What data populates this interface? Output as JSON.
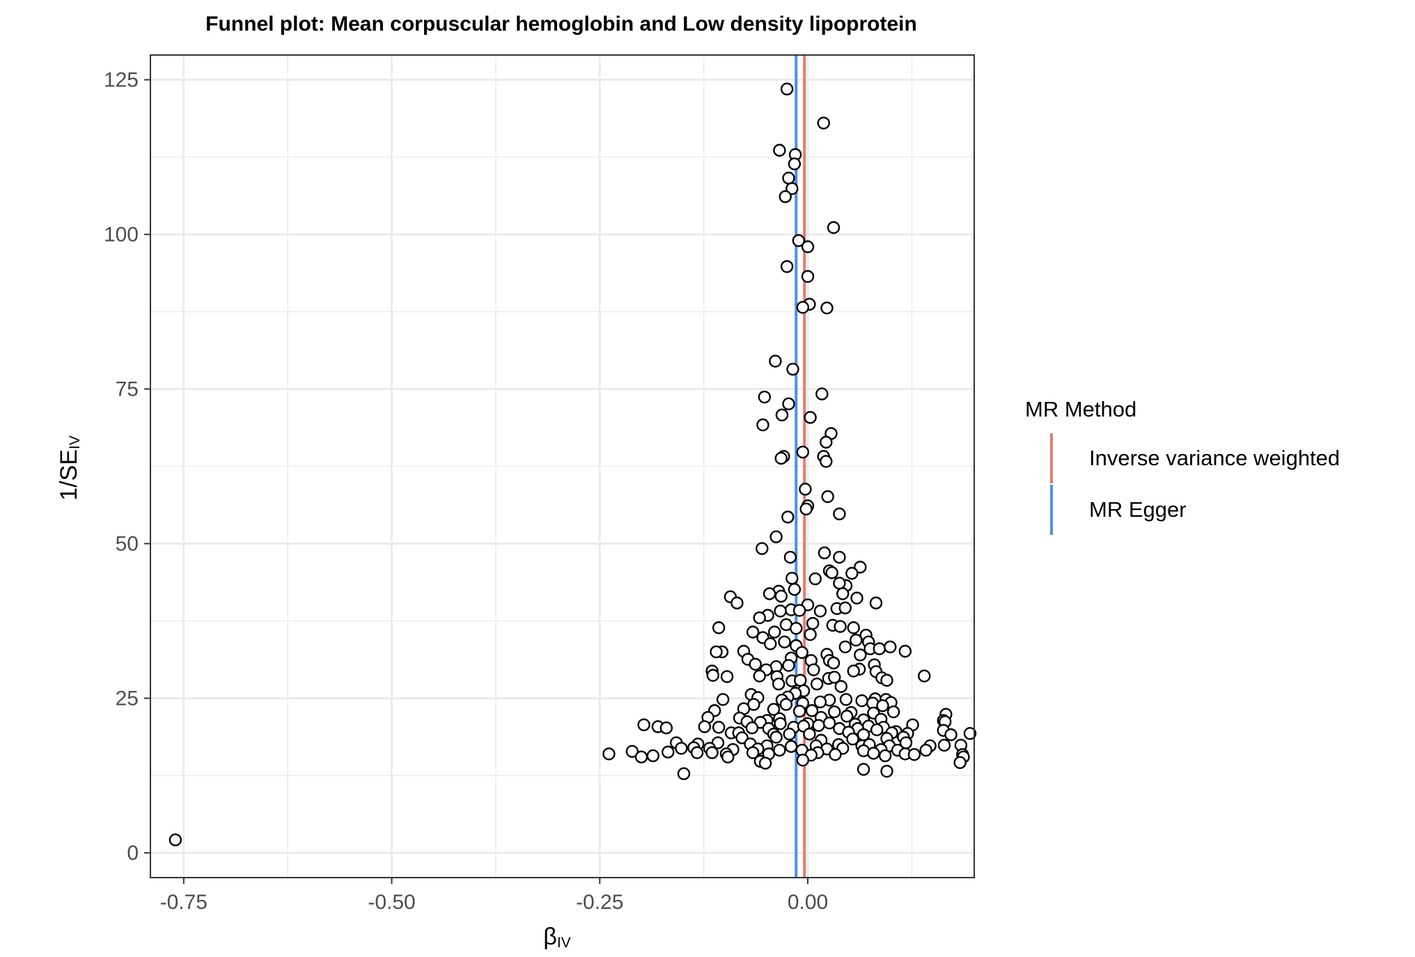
{
  "chart_data": {
    "type": "scatter",
    "title": "Funnel plot: Mean corpuscular hemoglobin and Low density lipoprotein",
    "xlabel": {
      "main": "β",
      "sub": "IV"
    },
    "ylabel": {
      "prefix": "1/SE",
      "sub": "IV"
    },
    "xlim": [
      -0.79,
      0.2
    ],
    "ylim": [
      -4,
      129
    ],
    "x_ticks": [
      -0.75,
      -0.5,
      -0.25,
      0.0
    ],
    "x_tick_labels": [
      "-0.75",
      "-0.50",
      "-0.25",
      "0.00"
    ],
    "y_ticks": [
      0,
      25,
      50,
      75,
      100,
      125
    ],
    "y_tick_labels": [
      "0",
      "25",
      "50",
      "75",
      "100",
      "125"
    ],
    "grid": true,
    "legend": {
      "title": "MR Method",
      "position": "right",
      "entries": [
        {
          "label": "Inverse variance weighted",
          "color": "#E8796E"
        },
        {
          "label": "MR Egger",
          "color": "#4A90E8"
        }
      ]
    },
    "vlines": [
      {
        "method": "Inverse variance weighted",
        "x": -0.004,
        "color": "#E8796E"
      },
      {
        "method": "MR Egger",
        "x": -0.014,
        "color": "#4A90E8"
      }
    ],
    "points": [
      [
        -0.025,
        123.5
      ],
      [
        0.019,
        118
      ],
      [
        -0.034,
        113.6
      ],
      [
        -0.015,
        112.9
      ],
      [
        -0.016,
        111.4
      ],
      [
        -0.023,
        109.1
      ],
      [
        -0.019,
        107.4
      ],
      [
        -0.027,
        106.1
      ],
      [
        0.031,
        101.1
      ],
      [
        -0.011,
        99
      ],
      [
        0.0,
        98
      ],
      [
        -0.025,
        94.8
      ],
      [
        0.0,
        93.2
      ],
      [
        0.002,
        88.7
      ],
      [
        -0.006,
        88.2
      ],
      [
        0.023,
        88.1
      ],
      [
        -0.039,
        79.5
      ],
      [
        -0.018,
        78.2
      ],
      [
        -0.052,
        73.7
      ],
      [
        0.017,
        74.2
      ],
      [
        -0.023,
        72.6
      ],
      [
        -0.031,
        70.8
      ],
      [
        0.003,
        70.4
      ],
      [
        -0.054,
        69.2
      ],
      [
        0.028,
        67.8
      ],
      [
        0.022,
        66.4
      ],
      [
        -0.029,
        64.1
      ],
      [
        -0.032,
        63.8
      ],
      [
        -0.006,
        64.8
      ],
      [
        0.019,
        64.1
      ],
      [
        0.022,
        63.3
      ],
      [
        -0.003,
        58.8
      ],
      [
        0.024,
        57.6
      ],
      [
        0.0,
        56.1
      ],
      [
        -0.002,
        55.6
      ],
      [
        0.038,
        54.8
      ],
      [
        -0.024,
        54.3
      ],
      [
        -0.038,
        51.1
      ],
      [
        -0.055,
        49.2
      ],
      [
        -0.021,
        47.8
      ],
      [
        0.02,
        48.5
      ],
      [
        0.038,
        47.8
      ],
      [
        0.063,
        46.2
      ],
      [
        0.026,
        45.6
      ],
      [
        0.029,
        45.3
      ],
      [
        0.053,
        45.2
      ],
      [
        -0.019,
        44.4
      ],
      [
        0.009,
        44.3
      ],
      [
        0.046,
        43.2
      ],
      [
        0.038,
        43.6
      ],
      [
        -0.016,
        42.6
      ],
      [
        -0.035,
        42.3
      ],
      [
        -0.046,
        41.9
      ],
      [
        -0.032,
        41.5
      ],
      [
        0.042,
        41.9
      ],
      [
        0.059,
        41.2
      ],
      [
        -0.093,
        41.4
      ],
      [
        -0.085,
        40.4
      ],
      [
        0.0,
        40.1
      ],
      [
        0.082,
        40.4
      ],
      [
        -0.02,
        39.3
      ],
      [
        -0.033,
        39.1
      ],
      [
        -0.01,
        39.2
      ],
      [
        0.015,
        39.1
      ],
      [
        0.035,
        39.5
      ],
      [
        0.045,
        39.6
      ],
      [
        -0.048,
        38.4
      ],
      [
        -0.058,
        38
      ],
      [
        0.006,
        37.1
      ],
      [
        0.03,
        36.8
      ],
      [
        0.039,
        36.6
      ],
      [
        -0.026,
        36.9
      ],
      [
        -0.014,
        36.3
      ],
      [
        0.055,
        36.4
      ],
      [
        -0.107,
        36.4
      ],
      [
        -0.04,
        35.7
      ],
      [
        -0.066,
        35.7
      ],
      [
        0.003,
        35.3
      ],
      [
        0.07,
        35.2
      ],
      [
        -0.054,
        34.8
      ],
      [
        -0.028,
        34.1
      ],
      [
        0.073,
        34.1
      ],
      [
        0.058,
        34.4
      ],
      [
        -0.045,
        33.8
      ],
      [
        -0.014,
        33.5
      ],
      [
        0.075,
        33
      ],
      [
        0.086,
        33
      ],
      [
        0.099,
        33.3
      ],
      [
        0.045,
        33.3
      ],
      [
        -0.077,
        32.6
      ],
      [
        -0.103,
        32.5
      ],
      [
        -0.11,
        32.5
      ],
      [
        -0.007,
        32.4
      ],
      [
        0.023,
        32.1
      ],
      [
        0.063,
        32
      ],
      [
        0.117,
        32.6
      ],
      [
        -0.02,
        31.5
      ],
      [
        -0.072,
        31.3
      ],
      [
        0.004,
        31.1
      ],
      [
        0.026,
        31.1
      ],
      [
        0.031,
        30.7
      ],
      [
        -0.063,
        30.5
      ],
      [
        -0.023,
        30.3
      ],
      [
        0.08,
        30.4
      ],
      [
        -0.038,
        30.1
      ],
      [
        -0.05,
        29.6
      ],
      [
        0.007,
        29.6
      ],
      [
        0.062,
        29.7
      ],
      [
        0.055,
        29.4
      ],
      [
        0.082,
        29.3
      ],
      [
        -0.115,
        29.4
      ],
      [
        -0.114,
        28.7
      ],
      [
        -0.097,
        28.5
      ],
      [
        -0.058,
        28.6
      ],
      [
        -0.037,
        28.5
      ],
      [
        0.025,
        28.2
      ],
      [
        0.032,
        28.4
      ],
      [
        0.089,
        28.3
      ],
      [
        0.095,
        27.9
      ],
      [
        -0.019,
        27.8
      ],
      [
        0.14,
        28.6
      ],
      [
        -0.035,
        27.3
      ],
      [
        -0.009,
        27.9
      ],
      [
        0.011,
        27.3
      ],
      [
        0.04,
        26.9
      ],
      [
        -0.005,
        26.2
      ],
      [
        -0.015,
        25.8
      ],
      [
        -0.068,
        25.6
      ],
      [
        -0.102,
        24.8
      ],
      [
        -0.024,
        25.2
      ],
      [
        -0.06,
        25.1
      ],
      [
        -0.031,
        24.7
      ],
      [
        0.026,
        24.7
      ],
      [
        0.046,
        24.8
      ],
      [
        0.065,
        24.6
      ],
      [
        0.081,
        24.9
      ],
      [
        0.094,
        24.8
      ],
      [
        0.1,
        24.3
      ],
      [
        -0.065,
        24
      ],
      [
        -0.026,
        24
      ],
      [
        -0.006,
        24.2
      ],
      [
        0.015,
        24.4
      ],
      [
        0.078,
        24.2
      ],
      [
        0.09,
        23.8
      ],
      [
        -0.112,
        23
      ],
      [
        -0.077,
        23.3
      ],
      [
        -0.041,
        23.2
      ],
      [
        -0.01,
        22.9
      ],
      [
        0.005,
        23
      ],
      [
        0.032,
        22.8
      ],
      [
        0.052,
        22.7
      ],
      [
        0.079,
        22.6
      ],
      [
        0.103,
        22.8
      ],
      [
        0.166,
        22.4
      ],
      [
        -0.12,
        21.9
      ],
      [
        -0.082,
        21.8
      ],
      [
        -0.049,
        21.4
      ],
      [
        -0.034,
        21.7
      ],
      [
        0.016,
        21.9
      ],
      [
        0.047,
        22.1
      ],
      [
        0.067,
        21.5
      ],
      [
        0.088,
        21.6
      ],
      [
        0.163,
        21.4
      ],
      [
        0.165,
        21.2
      ],
      [
        -0.073,
        21.2
      ],
      [
        -0.057,
        21.1
      ],
      [
        -0.033,
        20.9
      ],
      [
        0.0,
        20.9
      ],
      [
        0.013,
        20.6
      ],
      [
        0.026,
        21
      ],
      [
        0.057,
        20.8
      ],
      [
        0.073,
        20.5
      ],
      [
        0.091,
        20.3
      ],
      [
        0.126,
        20.7
      ],
      [
        -0.197,
        20.7
      ],
      [
        -0.18,
        20.4
      ],
      [
        -0.17,
        20.2
      ],
      [
        -0.124,
        20.4
      ],
      [
        -0.107,
        20.3
      ],
      [
        -0.067,
        20.2
      ],
      [
        -0.047,
        20.1
      ],
      [
        -0.017,
        20.3
      ],
      [
        -0.005,
        20.5
      ],
      [
        0.038,
        20.1
      ],
      [
        0.06,
        20.1
      ],
      [
        0.083,
        19.9
      ],
      [
        0.106,
        19.6
      ],
      [
        0.163,
        19.8
      ],
      [
        -0.092,
        19.4
      ],
      [
        -0.083,
        19.4
      ],
      [
        -0.041,
        19.2
      ],
      [
        -0.022,
        19.2
      ],
      [
        0.002,
        19.2
      ],
      [
        0.049,
        19.5
      ],
      [
        0.067,
        19.1
      ],
      [
        0.101,
        19.4
      ],
      [
        0.12,
        19.3
      ],
      [
        0.172,
        19.1
      ],
      [
        0.195,
        19.3
      ],
      [
        -0.079,
        18.6
      ],
      [
        -0.038,
        18.7
      ],
      [
        0.016,
        18.2
      ],
      [
        0.054,
        18.4
      ],
      [
        0.095,
        18.5
      ],
      [
        0.115,
        18.7
      ],
      [
        -0.158,
        17.8
      ],
      [
        -0.132,
        17.6
      ],
      [
        -0.108,
        17.8
      ],
      [
        -0.069,
        17.6
      ],
      [
        -0.049,
        17.3
      ],
      [
        -0.02,
        17.2
      ],
      [
        0.01,
        17.3
      ],
      [
        0.037,
        17.5
      ],
      [
        0.065,
        17.3
      ],
      [
        0.074,
        17.5
      ],
      [
        0.098,
        17.3
      ],
      [
        0.118,
        17.8
      ],
      [
        0.147,
        17.3
      ],
      [
        0.164,
        17.4
      ],
      [
        0.184,
        17.4
      ],
      [
        -0.152,
        16.9
      ],
      [
        -0.137,
        17
      ],
      [
        -0.118,
        16.9
      ],
      [
        -0.09,
        16.7
      ],
      [
        -0.06,
        16.8
      ],
      [
        -0.034,
        16.6
      ],
      [
        -0.007,
        16.6
      ],
      [
        0.023,
        16.8
      ],
      [
        0.042,
        16.9
      ],
      [
        0.067,
        16.5
      ],
      [
        0.088,
        16.7
      ],
      [
        0.108,
        16.6
      ],
      [
        0.142,
        16.6
      ],
      [
        -0.211,
        16.4
      ],
      [
        -0.168,
        16.3
      ],
      [
        -0.133,
        16.2
      ],
      [
        -0.115,
        16.2
      ],
      [
        -0.098,
        16
      ],
      [
        -0.066,
        16.2
      ],
      [
        -0.047,
        16
      ],
      [
        0.012,
        16.2
      ],
      [
        0.033,
        15.9
      ],
      [
        0.079,
        16.1
      ],
      [
        0.117,
        16
      ],
      [
        0.128,
        15.9
      ],
      [
        -0.239,
        16
      ],
      [
        -0.2,
        15.5
      ],
      [
        -0.186,
        15.7
      ],
      [
        -0.096,
        15.5
      ],
      [
        0.004,
        15.8
      ],
      [
        0.093,
        15.7
      ],
      [
        0.186,
        15.9
      ],
      [
        0.187,
        15.5
      ],
      [
        -0.057,
        14.8
      ],
      [
        -0.051,
        14.5
      ],
      [
        -0.006,
        15
      ],
      [
        0.183,
        14.6
      ],
      [
        -0.149,
        12.8
      ],
      [
        0.067,
        13.5
      ],
      [
        0.095,
        13.2
      ],
      [
        -0.76,
        2.1
      ]
    ]
  }
}
